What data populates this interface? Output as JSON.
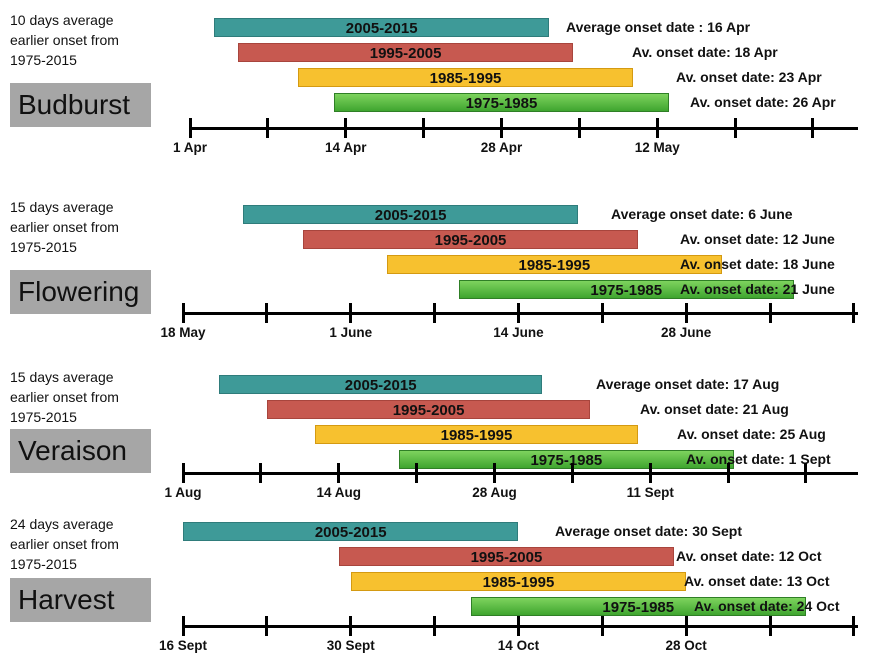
{
  "chart_data": [
    {
      "type": "timeline",
      "title": "Budburst",
      "note": "10 days average earlier onset from 1975-2015",
      "x_ticks": [
        "1 Apr",
        "14 Apr",
        "28 Apr",
        "12 May"
      ],
      "series": [
        {
          "name": "2005-2015",
          "start": "3 Apr",
          "end": "1 May",
          "color": "#3e9a98",
          "onset_label": "Average onset date : 16 Apr"
        },
        {
          "name": "1995-2005",
          "start": "5 Apr",
          "end": "3 May",
          "color": "#c75950",
          "onset_label": "Av. onset date: 18 Apr"
        },
        {
          "name": "1985-1995",
          "start": "10 Apr",
          "end": "8 May",
          "color": "#f7c12f",
          "onset_label": "Av. onset date: 23 Apr"
        },
        {
          "name": "1975-1985",
          "start": "13 Apr",
          "end": "11 May",
          "color": "#56bb3f",
          "onset_label": "Av. onset date: 26 Apr"
        }
      ]
    },
    {
      "type": "timeline",
      "title": "Flowering",
      "note": "15 days average earlier onset from 1975-2015",
      "x_ticks": [
        "18 May",
        "1 June",
        "14 June",
        "28 June"
      ],
      "series": [
        {
          "name": "2005-2015",
          "start": "23 May",
          "end": "20 June",
          "color": "#3e9a98",
          "onset_label": "Average onset date: 6 June"
        },
        {
          "name": "1995-2005",
          "start": "28 May",
          "end": "25 June",
          "color": "#c75950",
          "onset_label": "Av. onset date: 12 June"
        },
        {
          "name": "1985-1995",
          "start": "4 June",
          "end": "2 July",
          "color": "#f7c12f",
          "onset_label": "Av. onset date: 18 June"
        },
        {
          "name": "1975-1985",
          "start": "10 June",
          "end": "8 July",
          "color": "#56bb3f",
          "onset_label": "Av. onset date: 21 June"
        }
      ]
    },
    {
      "type": "timeline",
      "title": "Veraison",
      "note": "15 days average earlier onset from 1975-2015",
      "x_ticks": [
        "1 Aug",
        "14 Aug",
        "28 Aug",
        "11 Sept"
      ],
      "series": [
        {
          "name": "2005-2015",
          "start": "4 Aug",
          "end": "31 Aug",
          "color": "#3e9a98",
          "onset_label": "Average onset date: 17 Aug"
        },
        {
          "name": "1995-2005",
          "start": "8 Aug",
          "end": "4 Sept",
          "color": "#c75950",
          "onset_label": "Av. onset date: 21 Aug"
        },
        {
          "name": "1985-1995",
          "start": "12 Aug",
          "end": "8 Sept",
          "color": "#f7c12f",
          "onset_label": "Av. onset date:  25 Aug"
        },
        {
          "name": "1975-1985",
          "start": "19 Aug",
          "end": "16 Sept",
          "color": "#56bb3f",
          "onset_label": "Av. onset date: 1 Sept"
        }
      ]
    },
    {
      "type": "timeline",
      "title": "Harvest",
      "note": "24 days average earlier onset from 1975-2015",
      "x_ticks": [
        "16 Sept",
        "30 Sept",
        "14 Oct",
        "28 Oct"
      ],
      "series": [
        {
          "name": "2005-2015",
          "start": "16 Sept",
          "end": "14 Oct",
          "color": "#3e9a98",
          "onset_label": "Average onset date: 30 Sept"
        },
        {
          "name": "1995-2005",
          "start": "29 Sept",
          "end": "27 Oct",
          "color": "#c75950",
          "onset_label": "Av. onset date: 12 Oct"
        },
        {
          "name": "1985-1995",
          "start": "30 Sept",
          "end": "28 Oct",
          "color": "#f7c12f",
          "onset_label": "Av. onset date: 13 Oct"
        },
        {
          "name": "1975-1985",
          "start": "10 Oct",
          "end": "7 Nov",
          "color": "#56bb3f",
          "onset_label": "Av. onset date: 24 Oct"
        }
      ]
    }
  ]
}
